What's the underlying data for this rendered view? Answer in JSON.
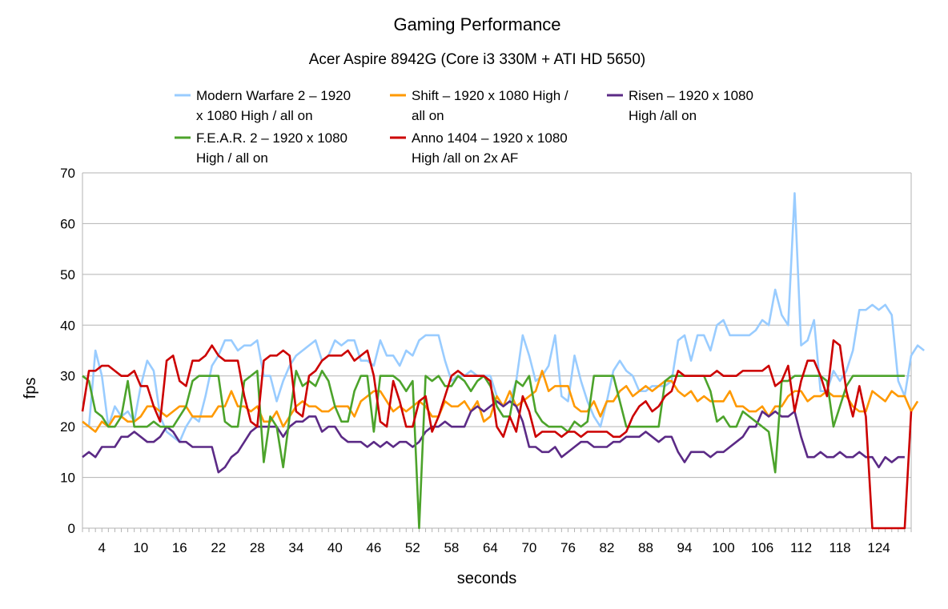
{
  "chart_data": {
    "type": "line",
    "title": "Gaming Performance",
    "subtitle": "Acer Aspire 8942G (Core i3 330M + ATI HD 5650)",
    "xlabel": "seconds",
    "ylabel": "fps",
    "ylim": [
      0,
      70
    ],
    "yticks": [
      0,
      10,
      20,
      30,
      40,
      50,
      60,
      70
    ],
    "xrange": [
      1,
      129
    ],
    "xticks": [
      4,
      10,
      16,
      22,
      28,
      34,
      40,
      46,
      52,
      58,
      64,
      70,
      76,
      82,
      88,
      94,
      100,
      106,
      112,
      118,
      124
    ],
    "grid": "horizontal",
    "legend_position": "top",
    "series": [
      {
        "name_lines": [
          "Modern Warfare 2 – 1920",
          "x 1080 High / all on"
        ],
        "color": "#99ccff",
        "values": [
          21,
          20,
          35,
          30,
          20,
          24,
          22,
          23,
          21,
          28,
          33,
          31,
          22,
          19,
          18,
          17,
          20,
          22,
          21,
          26,
          32,
          34,
          37,
          37,
          35,
          36,
          36,
          37,
          30,
          30,
          25,
          29,
          32,
          34,
          35,
          36,
          37,
          33,
          34,
          37,
          36,
          37,
          37,
          33,
          33,
          32,
          37,
          34,
          34,
          32,
          35,
          34,
          37,
          38,
          38,
          38,
          33,
          29,
          30,
          30,
          31,
          30,
          30,
          30,
          26,
          24,
          25,
          29,
          38,
          34,
          29,
          30,
          32,
          38,
          26,
          25,
          34,
          29,
          25,
          22,
          20,
          25,
          31,
          33,
          31,
          30,
          27,
          27,
          28,
          28,
          28,
          29,
          37,
          38,
          33,
          38,
          38,
          35,
          40,
          41,
          38,
          38,
          38,
          38,
          39,
          41,
          40,
          47,
          42,
          40,
          66,
          36,
          37,
          41,
          27,
          27,
          31,
          29,
          31,
          35,
          43,
          43,
          44,
          43,
          44,
          42,
          29,
          26,
          34,
          36,
          35
        ]
      },
      {
        "name_lines": [
          "Shift – 1920 x 1080 High /",
          "all on"
        ],
        "color": "#ff9900",
        "values": [
          21,
          20,
          19,
          21,
          20,
          22,
          22,
          21,
          21,
          22,
          24,
          24,
          23,
          22,
          23,
          24,
          24,
          22,
          22,
          22,
          22,
          24,
          24,
          27,
          24,
          24,
          23,
          24,
          21,
          21,
          23,
          20,
          22,
          24,
          25,
          24,
          24,
          23,
          23,
          24,
          24,
          24,
          22,
          25,
          26,
          27,
          27,
          25,
          23,
          24,
          23,
          24,
          25,
          24,
          22,
          22,
          25,
          24,
          24,
          25,
          23,
          25,
          21,
          22,
          26,
          24,
          27,
          24,
          25,
          26,
          27,
          31,
          27,
          28,
          28,
          28,
          24,
          23,
          23,
          25,
          22,
          25,
          25,
          27,
          28,
          26,
          27,
          28,
          27,
          28,
          29,
          29,
          27,
          26,
          27,
          25,
          26,
          25,
          25,
          25,
          27,
          24,
          24,
          23,
          23,
          24,
          22,
          24,
          24,
          26,
          27,
          27,
          25,
          26,
          26,
          27,
          26,
          26,
          26,
          24,
          23,
          23,
          27,
          26,
          25,
          27,
          26,
          26,
          23,
          25
        ]
      },
      {
        "name_lines": [
          "Risen – 1920 x 1080",
          "High /all on"
        ],
        "color": "#5b2a86",
        "values": [
          14,
          15,
          14,
          16,
          16,
          16,
          18,
          18,
          19,
          18,
          17,
          17,
          18,
          20,
          19,
          17,
          17,
          16,
          16,
          16,
          16,
          11,
          12,
          14,
          15,
          17,
          19,
          20,
          20,
          20,
          20,
          18,
          20,
          21,
          21,
          22,
          22,
          19,
          20,
          20,
          18,
          17,
          17,
          17,
          16,
          17,
          16,
          17,
          16,
          17,
          17,
          16,
          17,
          19,
          20,
          20,
          21,
          20,
          20,
          20,
          23,
          24,
          23,
          24,
          25,
          24,
          25,
          24,
          21,
          16,
          16,
          15,
          15,
          16,
          14,
          15,
          16,
          17,
          17,
          16,
          16,
          16,
          17,
          17,
          18,
          18,
          18,
          19,
          18,
          17,
          18,
          18,
          15,
          13,
          15,
          15,
          15,
          14,
          15,
          15,
          16,
          17,
          18,
          20,
          20,
          23,
          22,
          23,
          22,
          22,
          23,
          18,
          14,
          14,
          15,
          14,
          14,
          15,
          14,
          14,
          15,
          14,
          14,
          12,
          14,
          13,
          14,
          14
        ]
      },
      {
        "name_lines": [
          "F.E.A.R. 2 – 1920 x 1080",
          "High / all on"
        ],
        "color": "#4ca32b",
        "values": [
          30,
          29,
          23,
          22,
          20,
          20,
          22,
          29,
          20,
          20,
          20,
          21,
          20,
          20,
          20,
          22,
          24,
          29,
          30,
          30,
          30,
          30,
          21,
          20,
          20,
          29,
          30,
          31,
          13,
          22,
          20,
          12,
          22,
          31,
          28,
          29,
          28,
          31,
          29,
          24,
          21,
          21,
          27,
          30,
          30,
          19,
          30,
          30,
          30,
          29,
          27,
          29,
          0,
          30,
          29,
          30,
          28,
          28,
          30,
          29,
          27,
          29,
          30,
          28,
          24,
          22,
          22,
          29,
          28,
          30,
          23,
          21,
          20,
          20,
          20,
          19,
          21,
          20,
          21,
          30,
          30,
          30,
          30,
          25,
          20,
          20,
          20,
          20,
          20,
          20,
          29,
          30,
          30,
          30,
          30,
          30,
          30,
          27,
          21,
          22,
          20,
          20,
          23,
          22,
          21,
          20,
          19,
          11,
          29,
          29,
          30,
          30,
          30,
          30,
          30,
          29,
          20,
          24,
          28,
          30,
          30,
          30,
          30,
          30,
          30,
          30,
          30,
          30
        ]
      },
      {
        "name_lines": [
          "Anno 1404 – 1920 x 1080",
          "High /all on 2x AF"
        ],
        "color": "#cc0000",
        "values": [
          23,
          31,
          31,
          32,
          32,
          31,
          30,
          30,
          31,
          28,
          28,
          24,
          21,
          33,
          34,
          29,
          28,
          33,
          33,
          34,
          36,
          34,
          33,
          33,
          33,
          26,
          21,
          20,
          33,
          34,
          34,
          35,
          34,
          23,
          22,
          30,
          31,
          33,
          34,
          34,
          34,
          35,
          33,
          34,
          35,
          30,
          21,
          20,
          29,
          25,
          20,
          20,
          25,
          26,
          19,
          22,
          26,
          30,
          31,
          30,
          30,
          30,
          30,
          29,
          20,
          18,
          22,
          19,
          26,
          23,
          18,
          19,
          19,
          19,
          18,
          19,
          19,
          18,
          19,
          19,
          19,
          19,
          18,
          18,
          19,
          22,
          24,
          25,
          23,
          24,
          26,
          27,
          31,
          30,
          30,
          30,
          30,
          30,
          31,
          30,
          30,
          30,
          31,
          31,
          31,
          31,
          32,
          28,
          29,
          32,
          23,
          29,
          33,
          33,
          30,
          26,
          37,
          36,
          27,
          22,
          28,
          22,
          0,
          0,
          0,
          0,
          0,
          0,
          23
        ]
      }
    ]
  }
}
